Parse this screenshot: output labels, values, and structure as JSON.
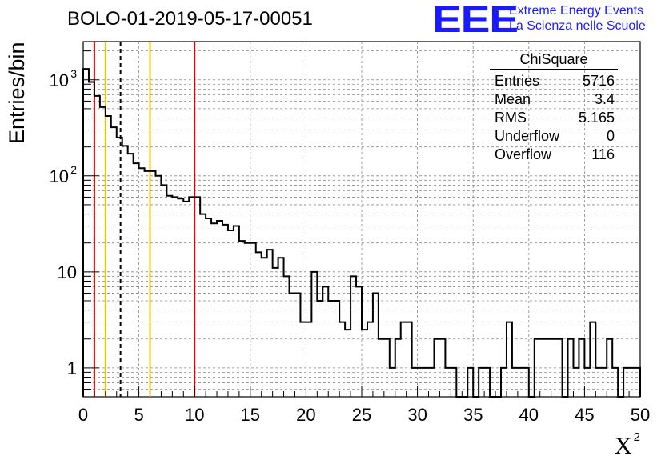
{
  "title": "BOLO-01-2019-05-17-00051",
  "logo": {
    "mark": "EEE",
    "line1": "Extreme Energy Events",
    "line2": "La Scienza nelle Scuole",
    "color": "#1a1aff"
  },
  "stats": {
    "title": "ChiSquare",
    "rows": [
      {
        "label": "Entries",
        "value": "5716"
      },
      {
        "label": "Mean",
        "value": "3.4"
      },
      {
        "label": "RMS",
        "value": "5.165"
      },
      {
        "label": "Underflow",
        "value": "0"
      },
      {
        "label": "Overflow",
        "value": "116"
      }
    ]
  },
  "chart_data": {
    "type": "bar",
    "histogram": true,
    "title": "BOLO-01-2019-05-17-00051",
    "xlabel": "X",
    "xlabel_superscript": "2",
    "ylabel": "Entries/bin",
    "xlim": [
      0,
      50
    ],
    "ylim": [
      0.5,
      2500
    ],
    "log_y": true,
    "grid": true,
    "bin_width": 0.5,
    "x_ticks": [
      0,
      5,
      10,
      15,
      20,
      25,
      30,
      35,
      40,
      45,
      50
    ],
    "y_ticks": [
      {
        "value": 1,
        "label": "1"
      },
      {
        "value": 10,
        "label": "10"
      },
      {
        "value": 100,
        "label": "10",
        "exponent": "2"
      },
      {
        "value": 1000,
        "label": "10",
        "exponent": "3"
      }
    ],
    "values": [
      1300,
      950,
      680,
      520,
      420,
      320,
      250,
      205,
      170,
      135,
      120,
      112,
      112,
      100,
      80,
      62,
      60,
      58,
      54,
      60,
      60,
      40,
      36,
      32,
      34,
      31,
      27,
      30,
      21,
      20,
      20,
      16,
      14,
      17,
      11,
      14,
      9,
      6,
      6,
      3,
      3,
      10,
      5,
      7,
      5,
      5,
      3,
      2.5,
      9,
      7,
      2.5,
      3,
      6,
      2,
      2,
      1,
      2,
      3,
      3,
      1,
      1,
      1,
      1,
      2,
      2,
      1,
      1,
      0,
      0,
      1,
      0,
      1,
      1,
      0,
      0,
      1,
      3,
      1,
      1,
      1,
      0,
      2,
      2,
      2,
      2,
      2,
      0,
      2,
      1,
      2,
      1,
      3,
      1,
      1,
      2,
      1,
      0,
      1,
      1,
      1
    ],
    "vertical_lines": [
      {
        "x": 1,
        "color": "#e8000b",
        "style": "solid"
      },
      {
        "x": 2,
        "color": "#f2c200",
        "style": "solid"
      },
      {
        "x": 3.35,
        "color": "#000000",
        "style": "dashed"
      },
      {
        "x": 6,
        "color": "#f2c200",
        "style": "solid"
      },
      {
        "x": 10,
        "color": "#e8000b",
        "style": "solid"
      }
    ]
  }
}
